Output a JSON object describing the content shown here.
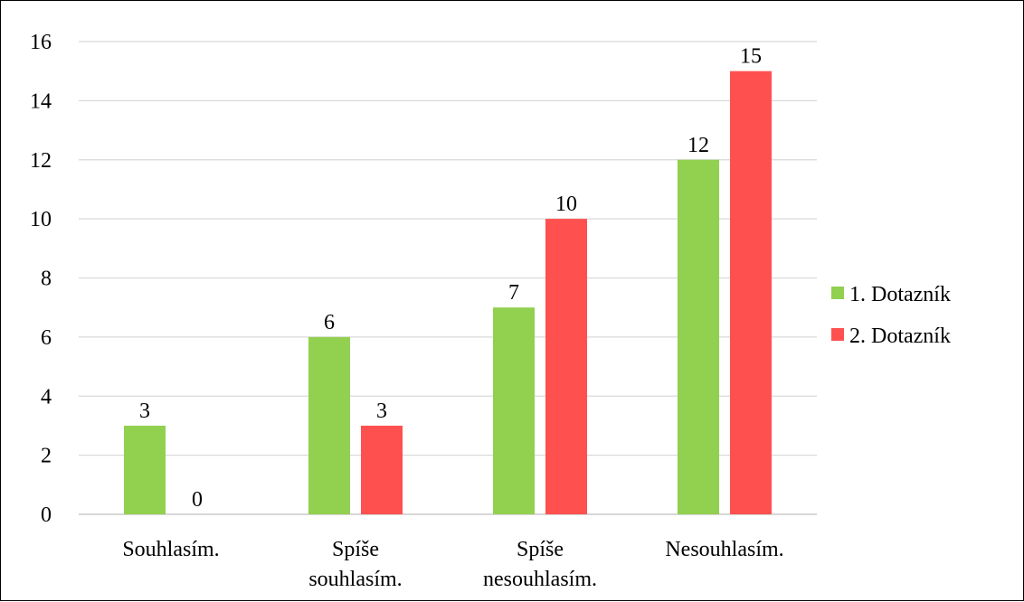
{
  "chart_data": {
    "type": "bar",
    "categories": [
      [
        "Souhlasím."
      ],
      [
        "Spíše",
        "souhlasím."
      ],
      [
        "Spíše",
        "nesouhlasím."
      ],
      [
        "Nesouhlasím."
      ]
    ],
    "series": [
      {
        "name": "1. Dotazník",
        "values": [
          3,
          6,
          7,
          12
        ],
        "color": "#92d050"
      },
      {
        "name": "2. Dotazník",
        "values": [
          0,
          3,
          10,
          15
        ],
        "color": "#ff5050"
      }
    ],
    "ylim": [
      0,
      16
    ],
    "yticks": [
      "0",
      "2",
      "4",
      "6",
      "8",
      "10",
      "12",
      "14",
      "16"
    ],
    "grid": true,
    "legend_position": "right",
    "data_labels": true
  }
}
